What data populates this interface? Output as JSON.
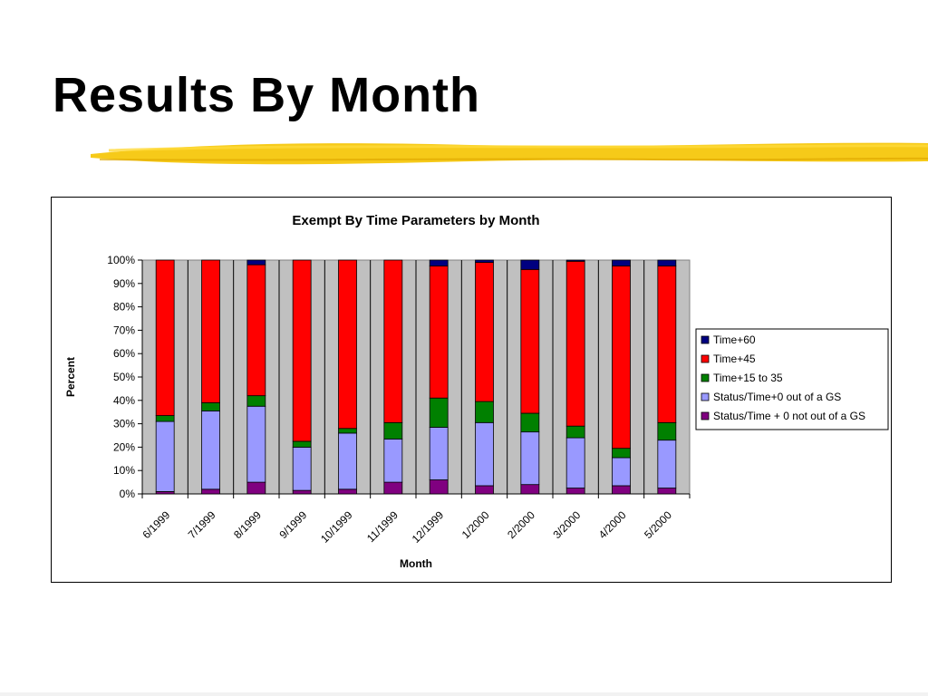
{
  "slide": {
    "title": "Results By Month",
    "highlight_color": "#f5c400"
  },
  "chart_data": {
    "type": "bar",
    "stacked": true,
    "percent_stacked": true,
    "title": "Exempt By Time Parameters by Month",
    "xlabel": "Month",
    "ylabel": "Percent",
    "ylim": [
      0,
      100
    ],
    "yticks": [
      "0%",
      "10%",
      "20%",
      "30%",
      "40%",
      "50%",
      "60%",
      "70%",
      "80%",
      "90%",
      "100%"
    ],
    "grid": true,
    "plot_background": "#c0c0c0",
    "legend_position": "right",
    "categories": [
      "6/1999",
      "7/1999",
      "8/1999",
      "9/1999",
      "10/1999",
      "11/1999",
      "12/1999",
      "1/2000",
      "2/2000",
      "3/2000",
      "4/2000",
      "5/2000"
    ],
    "series": [
      {
        "name": "Status/Time + 0 not out of a GS",
        "color": "#800080",
        "values": [
          1,
          2,
          5,
          1.5,
          2,
          5,
          6,
          3.5,
          4,
          2.5,
          3.5,
          2.5
        ]
      },
      {
        "name": " Status/Time+0 out of a GS",
        "color": "#9999ff",
        "values": [
          30,
          33.5,
          32.5,
          18.5,
          24,
          18.5,
          22.5,
          27,
          22.5,
          21.5,
          12,
          20.5
        ]
      },
      {
        "name": "Time+15 to 35",
        "color": "#008000",
        "values": [
          2.5,
          3.5,
          4.5,
          2.5,
          2,
          7,
          12.5,
          9,
          8,
          5,
          4,
          7.5
        ]
      },
      {
        "name": "Time+45",
        "color": "#ff0000",
        "values": [
          66.5,
          61,
          56,
          77.5,
          72,
          69.5,
          56.5,
          59.5,
          61.5,
          70.5,
          78,
          67
        ]
      },
      {
        "name": "Time+60",
        "color": "#000080",
        "values": [
          0,
          0,
          2,
          0,
          0,
          0,
          2.5,
          1,
          4,
          0.5,
          2.5,
          2.5
        ]
      }
    ]
  }
}
